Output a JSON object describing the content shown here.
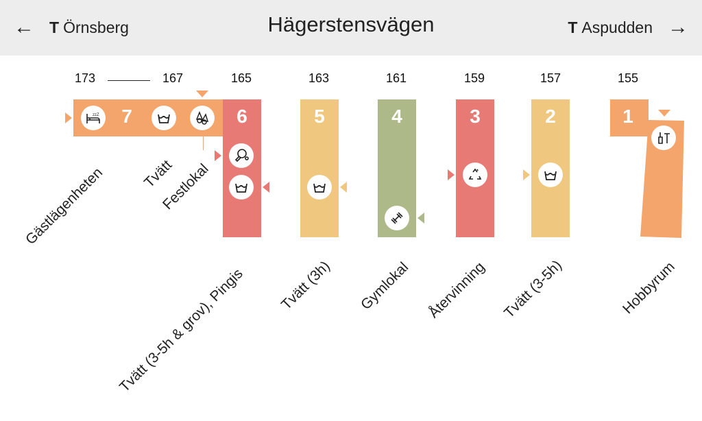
{
  "header": {
    "prev_station": {
      "prefix": "T",
      "name": "Örnsberg",
      "icon": "arrow-left-icon"
    },
    "title": "Hägerstensvägen",
    "next_station": {
      "prefix": "T",
      "name": "Aspudden",
      "icon": "arrow-right-icon"
    }
  },
  "colors": {
    "orange": "#f4a56c",
    "red": "#e87a76",
    "yellow": "#f0c77e",
    "green": "#adb988",
    "header_bg": "#ededed"
  },
  "street_numbers": [
    "173",
    "167",
    "165",
    "163",
    "161",
    "159",
    "157",
    "155"
  ],
  "entrances": [
    {
      "number": "7",
      "icons": [
        "guest-bed-icon",
        "laundry-icon",
        "party-icon"
      ],
      "labels": [
        "Gästlägenheten",
        "Tvätt",
        "Festlokal"
      ]
    },
    {
      "number": "6",
      "icons": [
        "ping-pong-icon",
        "laundry-icon"
      ],
      "label": "Tvätt (3-5h & grov), Pingis"
    },
    {
      "number": "5",
      "icons": [
        "laundry-icon"
      ],
      "label": "Tvätt (3h)"
    },
    {
      "number": "4",
      "icons": [
        "gym-dumbbell-icon"
      ],
      "label": "Gymlokal"
    },
    {
      "number": "3",
      "icons": [
        "recycling-icon"
      ],
      "label": "Återvinning"
    },
    {
      "number": "2",
      "icons": [
        "laundry-icon"
      ],
      "label": "Tvätt (3-5h)"
    },
    {
      "number": "1",
      "icons": [
        "hobby-tools-icon"
      ],
      "label": "Hobbyrum"
    }
  ]
}
